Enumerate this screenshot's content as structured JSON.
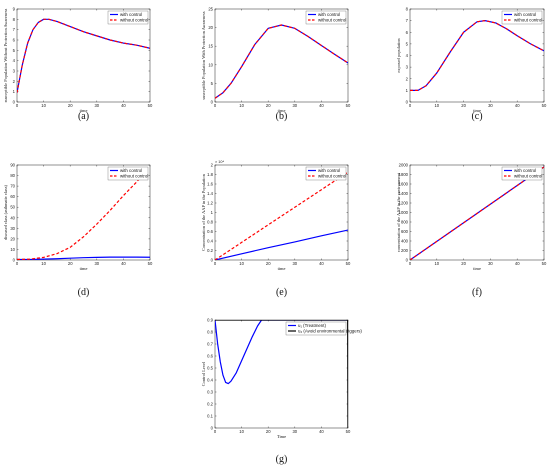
{
  "chart_data": [
    {
      "id": "a",
      "type": "line",
      "caption": "(a)",
      "xlabel": "time",
      "ylabel": "susceptible Population Without Protection Awareness",
      "xlim": [
        0,
        50
      ],
      "ylim": [
        0,
        9
      ],
      "xticks": [
        0,
        10,
        20,
        30,
        40,
        50
      ],
      "yticks": [
        0,
        1,
        2,
        3,
        4,
        5,
        6,
        7,
        8,
        9
      ],
      "legend": "top-right",
      "series": [
        {
          "name": "with control",
          "color": "#0000ff",
          "dash": "solid",
          "x": [
            0,
            2,
            4,
            6,
            8,
            10,
            12,
            15,
            20,
            25,
            30,
            35,
            40,
            45,
            50
          ],
          "y": [
            0.9,
            3.6,
            5.7,
            7.0,
            7.7,
            8.0,
            8.0,
            7.8,
            7.3,
            6.8,
            6.4,
            6.0,
            5.7,
            5.5,
            5.2
          ]
        },
        {
          "name": "without control",
          "color": "#ff0000",
          "dash": "dashed",
          "x": [
            0,
            2,
            4,
            6,
            8,
            10,
            12,
            15,
            20,
            25,
            30,
            35,
            40,
            45,
            50
          ],
          "y": [
            0.9,
            3.6,
            5.7,
            7.0,
            7.7,
            8.0,
            8.0,
            7.8,
            7.3,
            6.8,
            6.4,
            6.0,
            5.7,
            5.5,
            5.2
          ]
        }
      ]
    },
    {
      "id": "b",
      "type": "line",
      "caption": "(b)",
      "xlabel": "time",
      "ylabel": "susceptible Population With Protection Awareness",
      "xlim": [
        0,
        50
      ],
      "ylim": [
        0,
        25
      ],
      "xticks": [
        0,
        10,
        20,
        30,
        40,
        50
      ],
      "yticks": [
        0,
        5,
        10,
        15,
        20,
        25
      ],
      "legend": "top-right",
      "series": [
        {
          "name": "with control",
          "color": "#0000ff",
          "dash": "solid",
          "x": [
            0,
            3,
            6,
            10,
            15,
            20,
            25,
            30,
            35,
            40,
            45,
            50
          ],
          "y": [
            1.0,
            2.5,
            5.0,
            9.5,
            15.5,
            19.8,
            20.7,
            19.8,
            17.6,
            15.2,
            12.8,
            10.5
          ]
        },
        {
          "name": "without control",
          "color": "#ff0000",
          "dash": "dashed",
          "x": [
            0,
            3,
            6,
            10,
            15,
            20,
            25,
            30,
            35,
            40,
            45,
            50
          ],
          "y": [
            1.0,
            2.5,
            5.0,
            9.5,
            15.5,
            19.8,
            20.7,
            19.8,
            17.6,
            15.2,
            12.8,
            10.5
          ]
        }
      ]
    },
    {
      "id": "c",
      "type": "line",
      "caption": "(c)",
      "xlabel": "time",
      "ylabel": "exposed population",
      "xlim": [
        0,
        50
      ],
      "ylim": [
        0,
        8
      ],
      "xticks": [
        0,
        10,
        20,
        30,
        40,
        50
      ],
      "yticks": [
        0,
        1,
        2,
        3,
        4,
        5,
        6,
        7,
        8
      ],
      "legend": "top-right",
      "series": [
        {
          "name": "with control",
          "color": "#0000ff",
          "dash": "solid",
          "x": [
            0,
            3,
            6,
            10,
            15,
            20,
            25,
            28,
            32,
            36,
            40,
            45,
            50
          ],
          "y": [
            1.0,
            1.0,
            1.4,
            2.5,
            4.3,
            6.0,
            6.9,
            7.0,
            6.8,
            6.3,
            5.7,
            5.0,
            4.4
          ]
        },
        {
          "name": "without control",
          "color": "#ff0000",
          "dash": "dashed",
          "x": [
            0,
            3,
            6,
            10,
            15,
            20,
            25,
            28,
            32,
            36,
            40,
            45,
            50
          ],
          "y": [
            1.0,
            1.0,
            1.4,
            2.5,
            4.3,
            6.0,
            6.9,
            7.0,
            6.8,
            6.3,
            5.7,
            5.0,
            4.4
          ]
        }
      ]
    },
    {
      "id": "d",
      "type": "line",
      "caption": "(d)",
      "xlabel": "time",
      "ylabel": "diseased class (asthmatic class)",
      "xlim": [
        0,
        50
      ],
      "ylim": [
        0,
        90
      ],
      "xticks": [
        0,
        10,
        20,
        30,
        40,
        50
      ],
      "yticks": [
        0,
        10,
        20,
        30,
        40,
        50,
        60,
        70,
        80,
        90
      ],
      "legend": "top-right",
      "series": [
        {
          "name": "with control",
          "color": "#0000ff",
          "dash": "solid",
          "x": [
            0,
            5,
            10,
            15,
            20,
            25,
            30,
            35,
            40,
            45,
            50
          ],
          "y": [
            0.5,
            0.5,
            0.8,
            1.2,
            1.7,
            2.2,
            2.5,
            2.7,
            2.7,
            2.7,
            2.6
          ]
        },
        {
          "name": "without control",
          "color": "#ff0000",
          "dash": "dashed",
          "x": [
            0,
            5,
            10,
            15,
            20,
            25,
            30,
            35,
            40,
            45,
            47
          ],
          "y": [
            0.5,
            0.8,
            2.5,
            6.0,
            12.0,
            22.0,
            34.0,
            47.0,
            61.0,
            74.0,
            80.0
          ]
        }
      ]
    },
    {
      "id": "e",
      "type": "line",
      "caption": "(e)",
      "xlabel": "time",
      "ylabel": "Concentration of the AAP in the Population",
      "xlim": [
        0,
        50
      ],
      "ylim": [
        0,
        2
      ],
      "y_multiplier": "× 10⁴",
      "xticks": [
        0,
        10,
        20,
        30,
        40,
        50
      ],
      "yticks": [
        0,
        0.2,
        0.4,
        0.6,
        0.8,
        1,
        1.2,
        1.4,
        1.6,
        1.8,
        2
      ],
      "legend": "top-right",
      "series": [
        {
          "name": "with control",
          "color": "#0000ff",
          "dash": "solid",
          "x": [
            0,
            10,
            20,
            30,
            40,
            50
          ],
          "y": [
            0.0,
            0.13,
            0.26,
            0.38,
            0.51,
            0.63
          ]
        },
        {
          "name": "without control",
          "color": "#ff0000",
          "dash": "dashed",
          "x": [
            0,
            10,
            20,
            30,
            40,
            50
          ],
          "y": [
            0.0,
            0.37,
            0.74,
            1.11,
            1.48,
            1.85
          ]
        }
      ]
    },
    {
      "id": "f",
      "type": "line",
      "caption": "(f)",
      "xlabel": "time",
      "ylabel": "concentration of the AAP in the environment",
      "xlim": [
        0,
        50
      ],
      "ylim": [
        0,
        2000
      ],
      "xticks": [
        0,
        10,
        20,
        30,
        40,
        50
      ],
      "yticks": [
        0,
        200,
        400,
        600,
        800,
        1000,
        1200,
        1400,
        1600,
        1800,
        2000
      ],
      "legend": "top-right",
      "series": [
        {
          "name": "with control",
          "color": "#0000ff",
          "dash": "solid",
          "x": [
            0,
            50
          ],
          "y": [
            0,
            1960
          ]
        },
        {
          "name": "without control",
          "color": "#ff0000",
          "dash": "dashed",
          "x": [
            0,
            50
          ],
          "y": [
            0,
            1960
          ]
        }
      ]
    },
    {
      "id": "g",
      "type": "line",
      "caption": "(g)",
      "xlabel": "Time",
      "ylabel": "Control Level",
      "xlim": [
        0,
        50
      ],
      "ylim": [
        0,
        0.9
      ],
      "xticks": [
        0,
        10,
        20,
        30,
        40,
        50
      ],
      "yticks": [
        0,
        0.1,
        0.2,
        0.3,
        0.4,
        0.5,
        0.6,
        0.7,
        0.8,
        0.9
      ],
      "legend": "top-right",
      "series": [
        {
          "name": "u₁ (Treatment)",
          "color": "#0000ff",
          "dash": "solid",
          "x": [
            0,
            1,
            2,
            3,
            4,
            5,
            6,
            8,
            10,
            12,
            14,
            16,
            17.5,
            18,
            50
          ],
          "y": [
            0.9,
            0.7,
            0.55,
            0.44,
            0.38,
            0.37,
            0.39,
            0.46,
            0.56,
            0.66,
            0.76,
            0.85,
            0.9,
            0.9,
            0.9
          ]
        },
        {
          "name": "u₂ (Avoid environmental triggers)",
          "color": "#000000",
          "dash": "solid",
          "x": [
            0,
            49.5,
            49.9,
            50
          ],
          "y": [
            0.9,
            0.9,
            0.9,
            0.0
          ]
        }
      ]
    }
  ]
}
